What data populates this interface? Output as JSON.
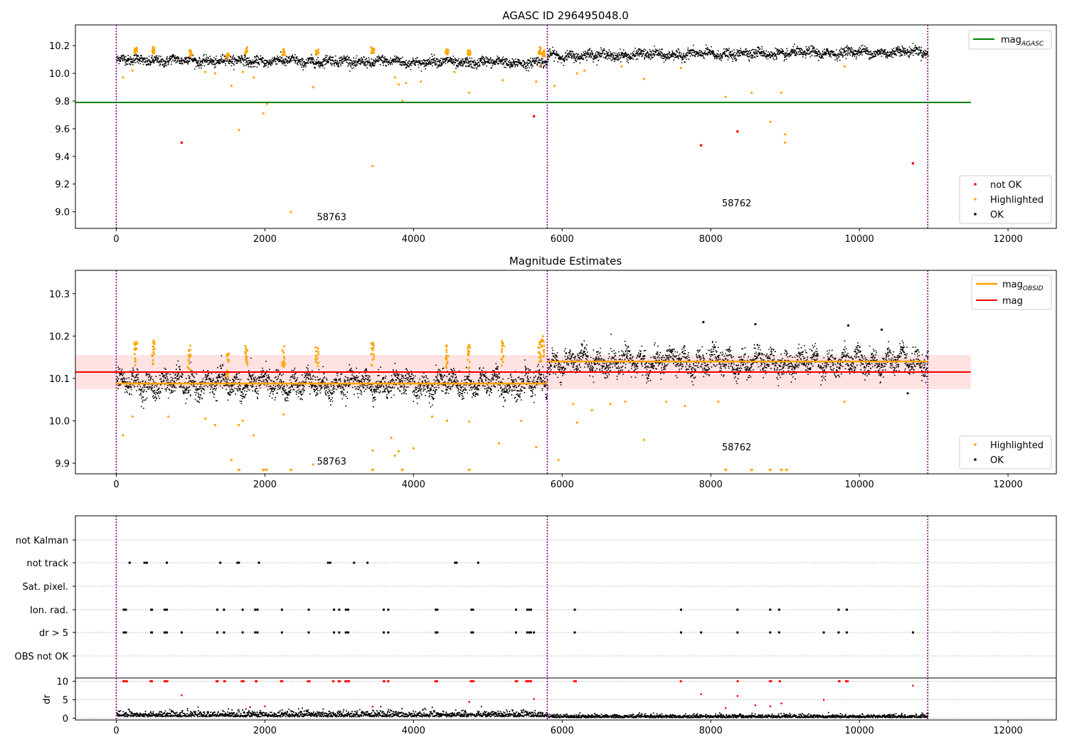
{
  "figure": {
    "colors": {
      "ok": "#000000",
      "highlighted": "#ffa500",
      "not_ok": "#ff0000",
      "agasc_line": "#008000",
      "obsid_line": "#ffa500",
      "mag_line": "#ff0000",
      "mag_band": "#ffb6b6",
      "vlines": "#800080"
    }
  },
  "chart_data": [
    {
      "type": "scatter",
      "title": "AGASC ID 296495048.0",
      "xlim": [
        -550,
        12650
      ],
      "ylim": [
        8.88,
        10.35
      ],
      "xticks": [
        0,
        2000,
        4000,
        6000,
        8000,
        10000,
        12000
      ],
      "yticks": [
        9.0,
        9.2,
        9.4,
        9.6,
        9.8,
        10.0,
        10.2
      ],
      "vlines": [
        0,
        5800,
        10920
      ],
      "obsid_labels": [
        {
          "text": "58763",
          "x": 2700,
          "y": 8.94
        },
        {
          "text": "58762",
          "x": 8150,
          "y": 9.04
        }
      ],
      "mag_agasc": {
        "value": 9.79,
        "x": [
          -550,
          11500
        ]
      },
      "segments": [
        {
          "x0": 0,
          "x1": 5800,
          "start": 10.1,
          "end": 10.08
        },
        {
          "x0": 5800,
          "x1": 10920,
          "start": 10.13,
          "end": 10.16
        }
      ],
      "ok_scatter_width": 0.035,
      "highlighted_high": [
        [
          260,
          10.19
        ],
        [
          500,
          10.19
        ],
        [
          1000,
          10.17
        ],
        [
          1500,
          10.15
        ],
        [
          1750,
          10.19
        ],
        [
          2250,
          10.18
        ],
        [
          2700,
          10.18
        ],
        [
          3450,
          10.19
        ],
        [
          4450,
          10.18
        ],
        [
          4750,
          10.18
        ],
        [
          5700,
          10.19
        ],
        [
          5750,
          10.17
        ]
      ],
      "highlighted": [
        [
          90,
          9.97
        ],
        [
          220,
          10.02
        ],
        [
          1200,
          10.01
        ],
        [
          1330,
          10.0
        ],
        [
          1550,
          9.91
        ],
        [
          1700,
          10.01
        ],
        [
          1650,
          9.59
        ],
        [
          1850,
          9.97
        ],
        [
          1980,
          9.71
        ],
        [
          2030,
          9.78
        ],
        [
          2350,
          9.0
        ],
        [
          2650,
          9.9
        ],
        [
          3450,
          9.33
        ],
        [
          3750,
          9.97
        ],
        [
          3800,
          9.92
        ],
        [
          3850,
          9.8
        ],
        [
          3900,
          9.93
        ],
        [
          4100,
          9.94
        ],
        [
          4550,
          10.01
        ],
        [
          4750,
          9.86
        ],
        [
          5200,
          9.95
        ],
        [
          5650,
          9.94
        ],
        [
          5700,
          10.05
        ],
        [
          5900,
          9.91
        ],
        [
          6200,
          10.0
        ],
        [
          6300,
          10.02
        ],
        [
          6800,
          10.05
        ],
        [
          7100,
          9.96
        ],
        [
          7600,
          10.04
        ],
        [
          8200,
          9.83
        ],
        [
          8550,
          9.86
        ],
        [
          8800,
          9.65
        ],
        [
          8950,
          9.86
        ],
        [
          9000,
          9.56
        ],
        [
          9000,
          9.5
        ],
        [
          9800,
          10.05
        ]
      ],
      "not_ok": [
        [
          880,
          9.5
        ],
        [
          5620,
          9.69
        ],
        [
          7870,
          9.48
        ],
        [
          8360,
          9.58
        ],
        [
          10720,
          9.35
        ]
      ],
      "legend_line": [
        {
          "label": "mag",
          "sub": "AGASC"
        }
      ],
      "legend_points": [
        {
          "label": "not OK",
          "kind": "not_ok"
        },
        {
          "label": "Highlighted",
          "kind": "highlighted"
        },
        {
          "label": "OK",
          "kind": "ok"
        }
      ]
    },
    {
      "type": "scatter",
      "title": "Magnitude Estimates",
      "xlim": [
        -550,
        12650
      ],
      "ylim": [
        9.875,
        10.355
      ],
      "xticks": [
        0,
        2000,
        4000,
        6000,
        8000,
        10000,
        12000
      ],
      "yticks": [
        9.9,
        10.0,
        10.1,
        10.2,
        10.3
      ],
      "ytick_labels": [
        "9.9",
        "10.0",
        "10.1",
        "10.2",
        "10.3"
      ],
      "vlines": [
        0,
        5800,
        10920
      ],
      "obsid_labels": [
        {
          "text": "58763",
          "x": 2700,
          "y": 9.897
        },
        {
          "text": "58762",
          "x": 8150,
          "y": 9.93
        }
      ],
      "mag": {
        "value": 10.115,
        "band": [
          10.075,
          10.155
        ],
        "x": [
          -550,
          11500
        ]
      },
      "mag_obsid": [
        {
          "x0": 0,
          "x1": 5800,
          "value": 10.088
        },
        {
          "x0": 5800,
          "x1": 10920,
          "value": 10.14
        }
      ],
      "ok_scatter_width": 0.025,
      "ok_outliers": [
        [
          7900,
          10.233
        ],
        [
          8600,
          10.228
        ],
        [
          9850,
          10.225
        ],
        [
          10300,
          10.215
        ],
        [
          10650,
          10.065
        ]
      ],
      "highlighted_high": [
        [
          260,
          10.19
        ],
        [
          500,
          10.19
        ],
        [
          980,
          10.18
        ],
        [
          1500,
          10.16
        ],
        [
          1750,
          10.19
        ],
        [
          2250,
          10.18
        ],
        [
          2700,
          10.18
        ],
        [
          3450,
          10.19
        ],
        [
          4450,
          10.18
        ],
        [
          4750,
          10.18
        ],
        [
          5200,
          10.19
        ],
        [
          5700,
          10.19
        ],
        [
          5740,
          10.2
        ]
      ],
      "highlighted": [
        [
          90,
          9.966
        ],
        [
          220,
          10.01
        ],
        [
          700,
          10.01
        ],
        [
          1200,
          10.005
        ],
        [
          1330,
          9.99
        ],
        [
          1550,
          9.907
        ],
        [
          1650,
          9.99
        ],
        [
          1700,
          10.0
        ],
        [
          1850,
          9.966
        ],
        [
          2250,
          10.015
        ],
        [
          2650,
          9.897
        ],
        [
          3450,
          9.93
        ],
        [
          3700,
          9.96
        ],
        [
          3750,
          9.918
        ],
        [
          3800,
          9.928
        ],
        [
          4000,
          9.935
        ],
        [
          4250,
          10.01
        ],
        [
          4450,
          10.0
        ],
        [
          4750,
          9.998
        ],
        [
          5150,
          9.947
        ],
        [
          5450,
          10.0
        ],
        [
          5650,
          9.938
        ],
        [
          5950,
          9.908
        ],
        [
          6150,
          10.04
        ],
        [
          6200,
          9.996
        ],
        [
          6400,
          10.025
        ],
        [
          6650,
          10.04
        ],
        [
          6850,
          10.045
        ],
        [
          7100,
          9.955
        ],
        [
          7400,
          10.045
        ],
        [
          7650,
          10.035
        ],
        [
          8100,
          10.045
        ],
        [
          9800,
          10.045
        ]
      ],
      "highlighted_down": [
        1650,
        1980,
        2020,
        2350,
        3450,
        3850,
        4750,
        8200,
        8550,
        8800,
        8950,
        9020
      ],
      "legend_lines": [
        {
          "label": "mag",
          "sub": "OBSID",
          "kind": "obsid"
        },
        {
          "label": "mag",
          "sub": "",
          "kind": "mag"
        }
      ],
      "legend_points": [
        {
          "label": "Highlighted",
          "kind": "highlighted"
        },
        {
          "label": "OK",
          "kind": "ok"
        }
      ]
    },
    {
      "type": "scatter",
      "title": "",
      "xlim": [
        -550,
        12650
      ],
      "xticks": [
        0,
        2000,
        4000,
        6000,
        8000,
        10000,
        12000
      ],
      "vlines": [
        0,
        5800,
        10920
      ],
      "flag_rows": [
        "not Kalman",
        "not track",
        "Sat. pixel.",
        "Ion. rad.",
        "dr > 5",
        "OBS not OK"
      ],
      "flags": {
        "not track": [
          180,
          380,
          410,
          680,
          1400,
          1630,
          1650,
          1920,
          2850,
          2880,
          3200,
          3380,
          4560,
          4580,
          4870
        ],
        "Ion. rad.": [
          100,
          130,
          470,
          480,
          650,
          680,
          1360,
          1450,
          1700,
          1870,
          1900,
          2230,
          2590,
          2930,
          3000,
          3090,
          3120,
          3600,
          3660,
          4300,
          4320,
          4780,
          4800,
          5380,
          5530,
          5560,
          5580,
          6170,
          7600,
          8360,
          8800,
          8920,
          9720,
          9830
        ],
        "dr > 5": [
          100,
          130,
          470,
          480,
          650,
          680,
          880,
          1360,
          1450,
          1700,
          1870,
          1900,
          2230,
          2590,
          2930,
          3000,
          3090,
          3120,
          3600,
          3660,
          4300,
          4320,
          4780,
          4800,
          5380,
          5530,
          5560,
          5580,
          5620,
          6170,
          7600,
          7870,
          8360,
          8800,
          8920,
          9520,
          9720,
          9830,
          10720
        ]
      },
      "dr": {
        "ylim": [
          -0.5,
          10.5
        ],
        "yticks": [
          0,
          5,
          10
        ],
        "ylabel": "dr",
        "clipped_at_10": [
          100,
          130,
          470,
          480,
          650,
          680,
          1360,
          1450,
          1700,
          1870,
          1900,
          2230,
          2590,
          2930,
          3000,
          3090,
          3120,
          3600,
          3660,
          4300,
          4320,
          4780,
          4800,
          5380,
          5530,
          5560,
          5580,
          6170,
          7600,
          8360,
          8800,
          8920,
          9720,
          9830
        ],
        "red_points": [
          [
            880,
            6.2
          ],
          [
            1800,
            3.0
          ],
          [
            2000,
            3.2
          ],
          [
            3450,
            3.1
          ],
          [
            4750,
            4.4
          ],
          [
            5620,
            5.2
          ],
          [
            7870,
            6.5
          ],
          [
            8200,
            2.7
          ],
          [
            8360,
            6.0
          ],
          [
            8600,
            3.5
          ],
          [
            8800,
            3.2
          ],
          [
            8950,
            4.0
          ],
          [
            9520,
            5.0
          ],
          [
            10720,
            8.8
          ]
        ],
        "level_left": 1.1,
        "level_right": 0.6
      }
    }
  ]
}
